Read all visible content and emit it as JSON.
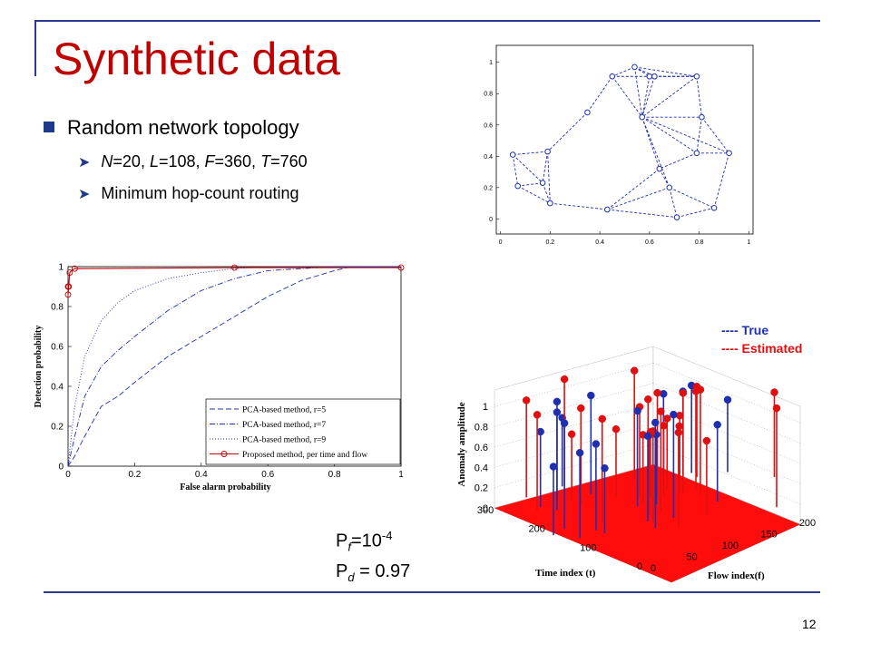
{
  "slide": {
    "title": "Synthetic data",
    "bullet": "Random network topology",
    "params_label": "N=20, L=108, F=360, T=760",
    "params": [
      {
        "var": "N",
        "val": "=20, "
      },
      {
        "var": "L",
        "val": "=108, "
      },
      {
        "var": "F",
        "val": "=360, "
      },
      {
        "var": "T",
        "val": "=760"
      }
    ],
    "routing": "Minimum hop-count routing",
    "pf_label": "P",
    "pf_sub": "f",
    "pf_eq": "=10",
    "pf_exp": "-4",
    "pd_label": "P",
    "pd_sub": "d",
    "pd_eq": " = 0.97",
    "page_number": "12",
    "colors": {
      "title": "#c00000",
      "accent": "#1f3a8a",
      "true": "#1f2fb0",
      "estimated": "#e01010"
    }
  },
  "network": {
    "xticks": [
      "0",
      "0.2",
      "0.4",
      "0.6",
      "0.8",
      "1"
    ],
    "yticks": [
      "0",
      "0.2",
      "0.4",
      "0.6",
      "0.8",
      "1"
    ],
    "nodes": [
      [
        0.54,
        0.97
      ],
      [
        0.45,
        0.91
      ],
      [
        0.6,
        0.91
      ],
      [
        0.62,
        0.91
      ],
      [
        0.79,
        0.91
      ],
      [
        0.35,
        0.68
      ],
      [
        0.57,
        0.65
      ],
      [
        0.81,
        0.65
      ],
      [
        0.05,
        0.41
      ],
      [
        0.19,
        0.43
      ],
      [
        0.79,
        0.42
      ],
      [
        0.92,
        0.42
      ],
      [
        0.64,
        0.32
      ],
      [
        0.17,
        0.23
      ],
      [
        0.07,
        0.21
      ],
      [
        0.68,
        0.2
      ],
      [
        0.2,
        0.1
      ],
      [
        0.43,
        0.06
      ],
      [
        0.71,
        0.01
      ],
      [
        0.86,
        0.07
      ]
    ],
    "edges": [
      [
        0,
        1
      ],
      [
        0,
        2
      ],
      [
        0,
        3
      ],
      [
        0,
        4
      ],
      [
        1,
        2
      ],
      [
        1,
        6
      ],
      [
        2,
        4
      ],
      [
        2,
        6
      ],
      [
        3,
        4
      ],
      [
        3,
        6
      ],
      [
        4,
        6
      ],
      [
        4,
        7
      ],
      [
        1,
        5
      ],
      [
        5,
        9
      ],
      [
        6,
        7
      ],
      [
        6,
        10
      ],
      [
        6,
        12
      ],
      [
        7,
        10
      ],
      [
        7,
        11
      ],
      [
        6,
        15
      ],
      [
        10,
        12
      ],
      [
        10,
        11
      ],
      [
        11,
        19
      ],
      [
        12,
        15
      ],
      [
        12,
        17
      ],
      [
        15,
        17
      ],
      [
        15,
        18
      ],
      [
        15,
        19
      ],
      [
        18,
        19
      ],
      [
        9,
        8
      ],
      [
        9,
        13
      ],
      [
        9,
        16
      ],
      [
        8,
        13
      ],
      [
        8,
        14
      ],
      [
        13,
        14
      ],
      [
        13,
        16
      ],
      [
        14,
        16
      ],
      [
        16,
        17
      ],
      [
        17,
        18
      ],
      [
        0,
        6
      ],
      [
        6,
        11
      ]
    ]
  },
  "chart_data": [
    {
      "type": "line",
      "xlabel": "False alarm probability",
      "ylabel": "Detection probability",
      "xlim": [
        0,
        1
      ],
      "ylim": [
        0,
        1
      ],
      "xticks": [
        "0",
        "0.2",
        "0.4",
        "0.6",
        "0.8",
        "1"
      ],
      "yticks": [
        "0",
        "0.2",
        "0.4",
        "0.6",
        "0.8",
        "1"
      ],
      "series": [
        {
          "name": "PCA-based method, r=5",
          "color": "#1f2fb0",
          "dash": "6,3",
          "x": [
            0,
            0.02,
            0.05,
            0.1,
            0.15,
            0.2,
            0.3,
            0.4,
            0.5,
            0.6,
            0.7,
            0.8,
            0.85,
            1
          ],
          "y": [
            0,
            0.05,
            0.15,
            0.3,
            0.35,
            0.42,
            0.55,
            0.65,
            0.75,
            0.85,
            0.93,
            0.98,
            1,
            1
          ]
        },
        {
          "name": "PCA-based method, r=7",
          "color": "#1f2fb0",
          "dash": "6,2,1,2",
          "x": [
            0,
            0.02,
            0.05,
            0.1,
            0.15,
            0.2,
            0.3,
            0.4,
            0.5,
            0.6,
            0.7,
            0.8,
            1
          ],
          "y": [
            0,
            0.15,
            0.35,
            0.5,
            0.58,
            0.65,
            0.78,
            0.88,
            0.94,
            0.98,
            0.99,
            1,
            1
          ]
        },
        {
          "name": "PCA-based method, r=9",
          "color": "#1f2fb0",
          "dash": "1,2",
          "x": [
            0,
            0.02,
            0.05,
            0.1,
            0.15,
            0.2,
            0.3,
            0.4,
            0.5,
            0.6,
            0.7,
            0.8,
            1
          ],
          "y": [
            0,
            0.3,
            0.55,
            0.73,
            0.82,
            0.88,
            0.94,
            0.97,
            0.99,
            1,
            1,
            1,
            1
          ]
        },
        {
          "name": "Proposed method, per time and flow",
          "color": "#c00000",
          "dash": "none",
          "x": [
            0,
            0.002,
            0.005,
            0.01,
            0.02,
            0.5,
            1
          ],
          "y": [
            0.86,
            0.9,
            0.97,
            0.98,
            0.99,
            0.995,
            0.995
          ]
        }
      ],
      "legend_position": "lower-right"
    },
    {
      "type": "scatter",
      "title": "",
      "xlabel": "Time index (t)",
      "ylabel": "Flow index(f)",
      "zlabel": "Anomaly amplitude",
      "xticks": [
        "0",
        "100",
        "200",
        "300"
      ],
      "yticks": [
        "0",
        "50",
        "100",
        "150",
        "200"
      ],
      "zticks": [
        "0",
        "0.2",
        "0.4",
        "0.6",
        "0.8",
        "1"
      ],
      "series": [
        {
          "name": "True",
          "color": "#1f2fb0"
        },
        {
          "name": "Estimated",
          "color": "#e01010"
        }
      ],
      "legend": [
        "---- True",
        "----  Estimated"
      ]
    }
  ]
}
